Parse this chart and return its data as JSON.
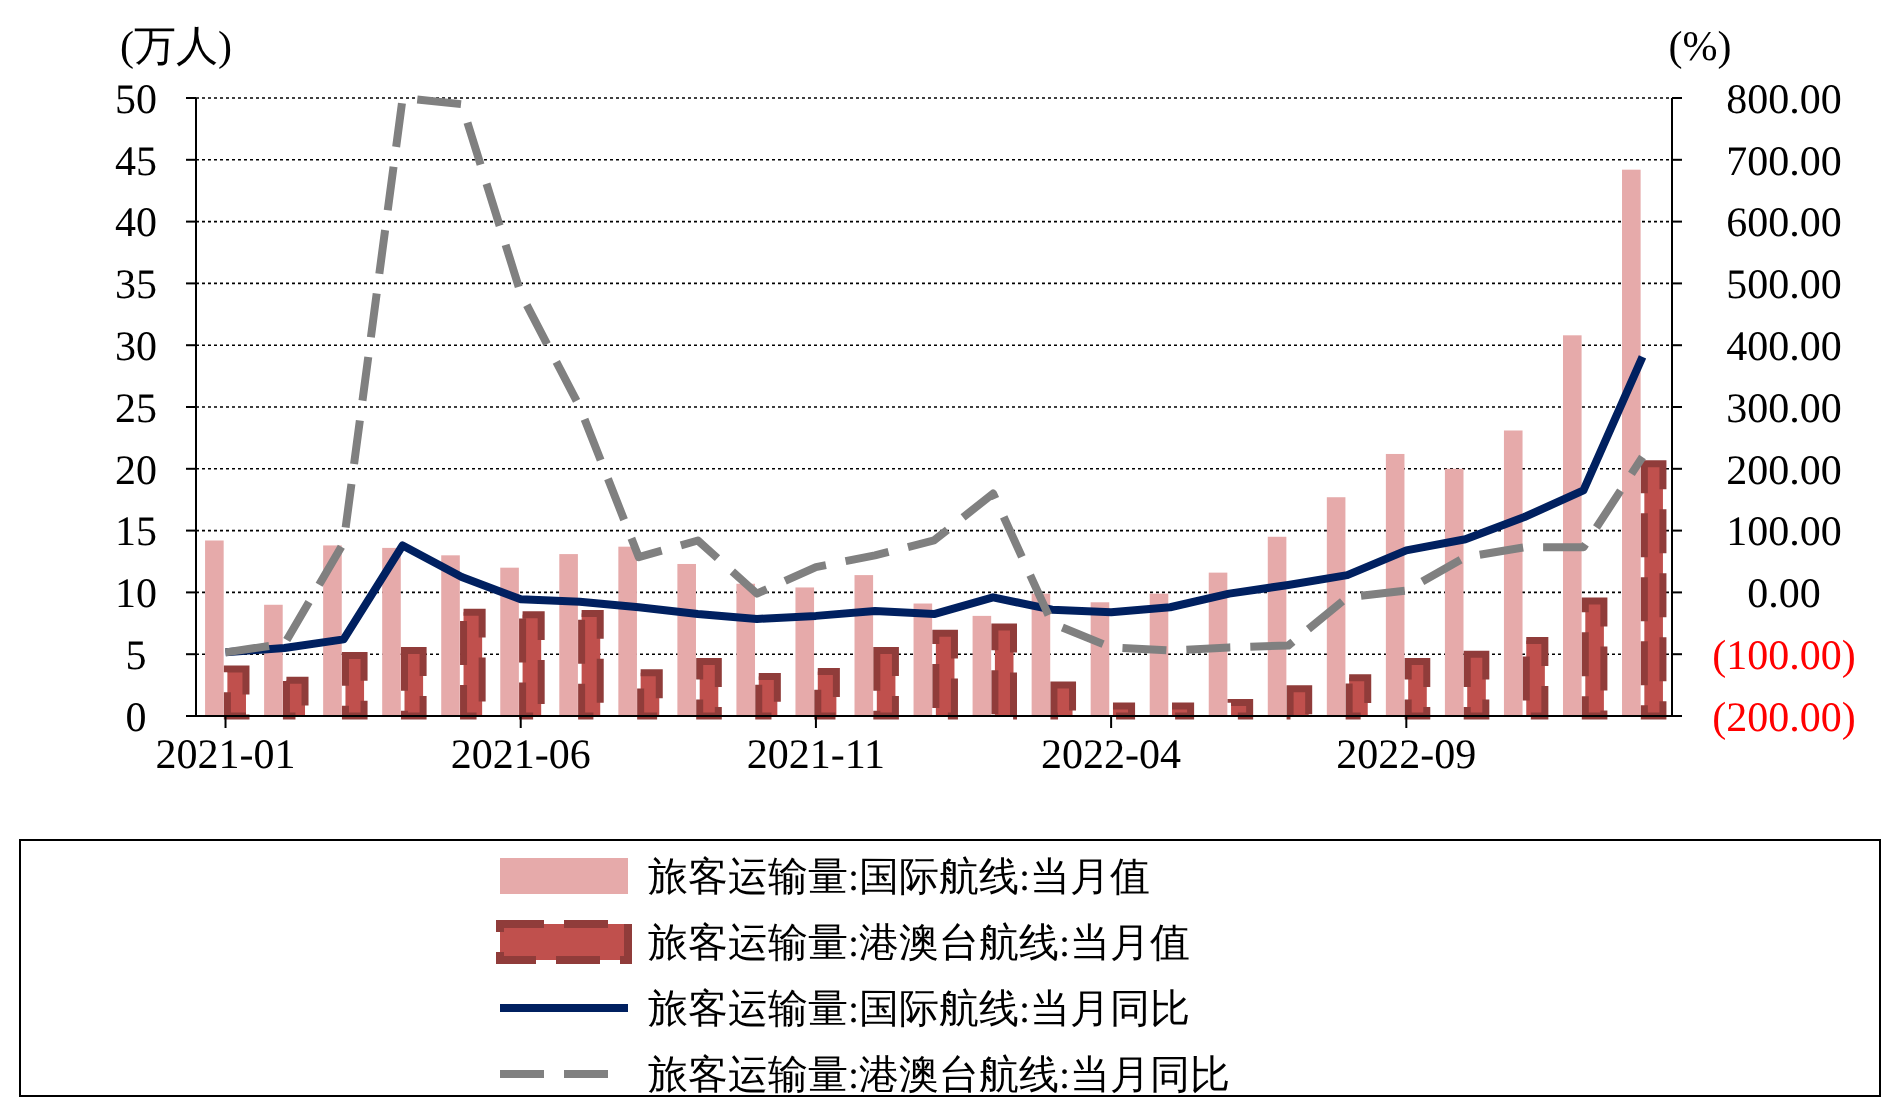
{
  "chart_data": {
    "type": "bar",
    "ylabel": "(万人)",
    "y2label": "(%)",
    "categories": [
      "2021-01",
      null,
      null,
      null,
      null,
      "2021-06",
      null,
      null,
      null,
      null,
      "2021-11",
      null,
      null,
      null,
      null,
      "2022-04",
      null,
      null,
      null,
      null,
      "2022-09",
      null,
      null,
      null,
      null
    ],
    "series": [
      {
        "name": "旅客运输量:国际航线:当月值",
        "color": "#e6aaaa",
        "values": [
          14.2,
          9.0,
          13.8,
          13.6,
          13.0,
          12.0,
          13.1,
          13.7,
          12.3,
          10.7,
          10.4,
          11.4,
          9.1,
          8.1,
          9.9,
          9.2,
          9.9,
          11.6,
          14.5,
          17.7,
          21.2,
          20.0,
          23.1,
          30.8,
          44.2
        ]
      },
      {
        "name": "旅客运输量:港澳台航线:当月值",
        "color": "#c0504d",
        "line_style": "dashed",
        "values": [
          3.8,
          2.9,
          4.9,
          5.3,
          8.4,
          8.2,
          8.3,
          3.5,
          4.4,
          3.2,
          3.6,
          5.3,
          6.7,
          7.2,
          2.5,
          0.8,
          0.8,
          1.1,
          2.2,
          3.1,
          4.4,
          5.0,
          6.1,
          9.3,
          20.4
        ]
      },
      {
        "name": "旅客运输量:国际航线:当月同比",
        "type": "line",
        "axis": "y2",
        "color": "#002060",
        "line_style": "solid",
        "values": [
          -97,
          -90,
          -76,
          76,
          25,
          -11,
          -15,
          -24,
          -35,
          -43,
          -38,
          -30,
          -35,
          -8,
          -28,
          -32,
          -24,
          -2,
          12,
          28,
          68,
          86,
          122,
          165,
          381
        ]
      },
      {
        "name": "旅客运输量:港澳台航线:当月同比",
        "type": "line",
        "axis": "y2",
        "color": "#808080",
        "line_style": "dashed",
        "values": [
          -97,
          -83,
          80,
          800,
          790,
          484,
          300,
          57,
          84,
          -2,
          41,
          60,
          84,
          160,
          -50,
          -89,
          -94,
          -89,
          -86,
          -8,
          3,
          57,
          73,
          73,
          219
        ]
      }
    ],
    "ylim": [
      0,
      50
    ],
    "yticks": [
      0,
      5,
      10,
      15,
      20,
      25,
      30,
      35,
      40,
      45,
      50
    ],
    "y2lim": [
      -200,
      800
    ],
    "y2ticks": [
      {
        "value": -200,
        "label": "(200.00)"
      },
      {
        "value": -100,
        "label": "(100.00)"
      },
      {
        "value": 0,
        "label": "0.00"
      },
      {
        "value": 100,
        "label": "100.00"
      },
      {
        "value": 200,
        "label": "200.00"
      },
      {
        "value": 300,
        "label": "300.00"
      },
      {
        "value": 400,
        "label": "400.00"
      },
      {
        "value": 500,
        "label": "500.00"
      },
      {
        "value": 600,
        "label": "600.00"
      },
      {
        "value": 700,
        "label": "700.00"
      },
      {
        "value": 800,
        "label": "800.00"
      }
    ],
    "grid": "y",
    "legend": "bottom",
    "marker": "none"
  }
}
